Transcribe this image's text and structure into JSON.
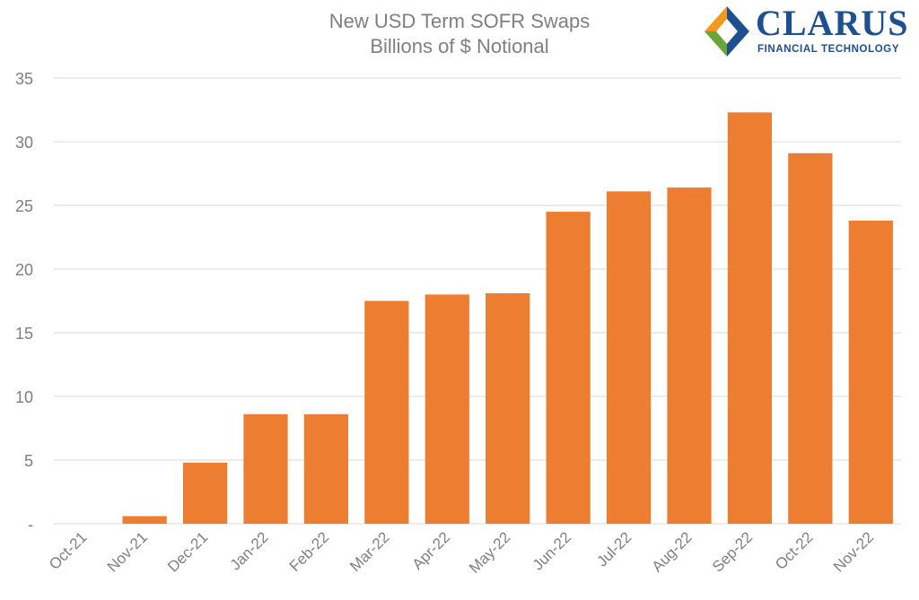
{
  "chart_data": {
    "type": "bar",
    "title": "New USD Term SOFR Swaps",
    "subtitle": "Billions of $ Notional",
    "categories": [
      "Oct-21",
      "Nov-21",
      "Dec-21",
      "Jan-22",
      "Feb-22",
      "Mar-22",
      "Apr-22",
      "May-22",
      "Jun-22",
      "Jul-22",
      "Aug-22",
      "Sep-22",
      "Oct-22",
      "Nov-22"
    ],
    "values": [
      0,
      0.6,
      4.8,
      8.6,
      8.6,
      17.5,
      18.0,
      18.1,
      24.5,
      26.1,
      26.4,
      32.3,
      29.1,
      23.8
    ],
    "ylim": [
      0,
      35
    ],
    "yticks": [
      0,
      5,
      10,
      15,
      20,
      25,
      30,
      35
    ],
    "ytick_labels": [
      "-",
      "5",
      "10",
      "15",
      "20",
      "25",
      "30",
      "35"
    ],
    "xlabel": "",
    "ylabel": "",
    "grid": true,
    "legend": "none",
    "bar_color": "#ed7d31",
    "grid_color": "#d9d9d9",
    "text_color": "#7f7f7f"
  },
  "logo": {
    "word": "CLARUS",
    "tagline": "FINANCIAL TECHNOLOGY",
    "colors": {
      "primary": "#1d4f91",
      "orange": "#f39a1e",
      "green": "#6ba539",
      "blue": "#1d4f91"
    }
  }
}
